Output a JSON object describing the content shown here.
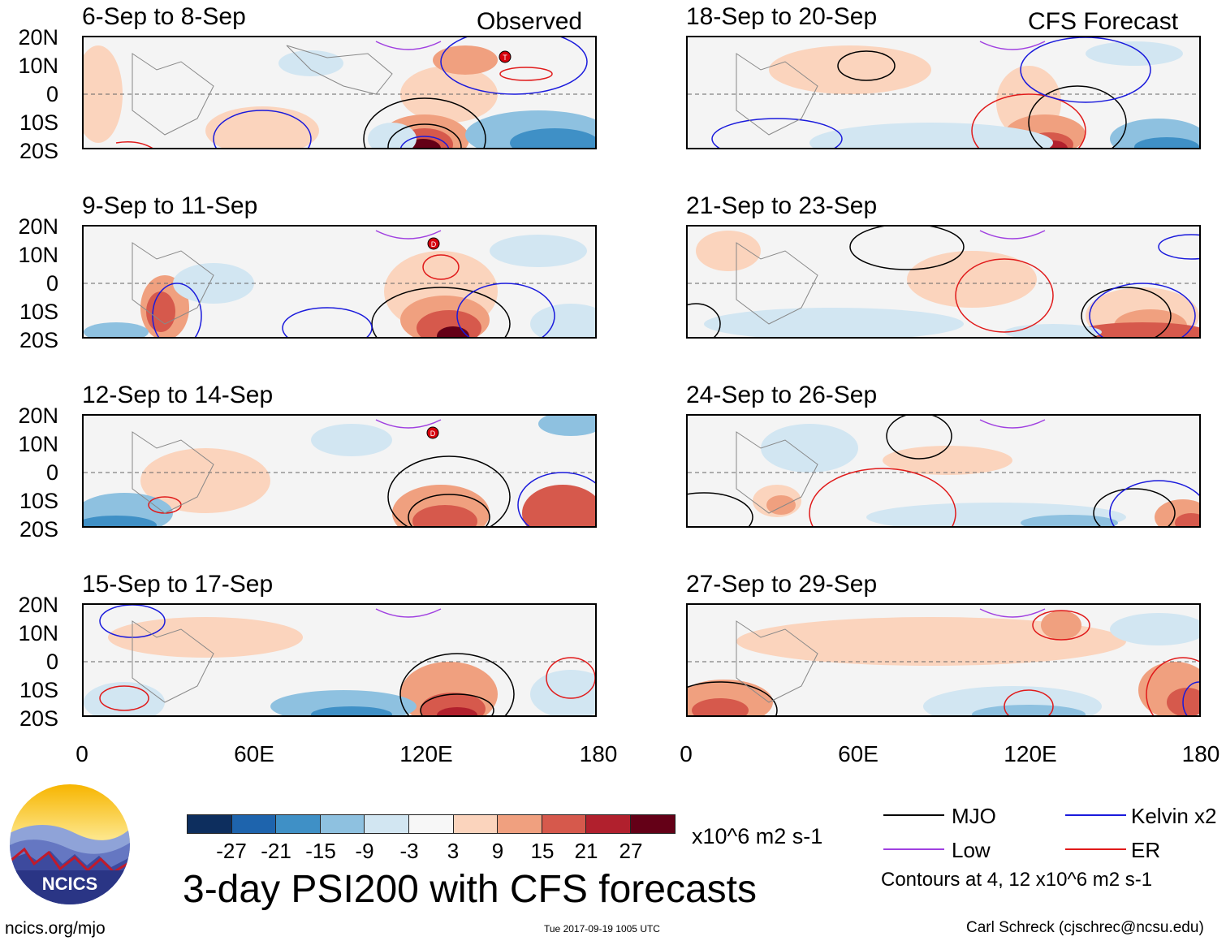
{
  "headers": {
    "observed": "Observed",
    "forecast": "CFS Forecast"
  },
  "panels": [
    {
      "title": "6-Sep to 8-Sep"
    },
    {
      "title": "9-Sep to 11-Sep"
    },
    {
      "title": "12-Sep to 14-Sep"
    },
    {
      "title": "15-Sep to 17-Sep"
    },
    {
      "title": "18-Sep to 20-Sep"
    },
    {
      "title": "21-Sep to 23-Sep"
    },
    {
      "title": "24-Sep to 26-Sep"
    },
    {
      "title": "27-Sep to 29-Sep"
    }
  ],
  "lat_labels": [
    "20N",
    "10N",
    "0",
    "10S",
    "20S"
  ],
  "lon_labels": [
    "0",
    "60E",
    "120E",
    "180"
  ],
  "storm_markers": [
    "T",
    "D",
    "D"
  ],
  "colorbar": {
    "colors": [
      "#0d2e5e",
      "#1e64ad",
      "#3f90c6",
      "#8ec1e0",
      "#d2e6f2",
      "#f7f7f7",
      "#fbd4bd",
      "#f0a07f",
      "#d6594c",
      "#b1202d",
      "#640017"
    ],
    "ticks": [
      "-27",
      "-21",
      "-15",
      "-9",
      "-3",
      "3",
      "9",
      "15",
      "21",
      "27"
    ],
    "units": "x10^6 m2 s-1"
  },
  "title": "3-day PSI200 with CFS forecasts",
  "legend": [
    {
      "label": "MJO",
      "color": "#000000"
    },
    {
      "label": "Kelvin x2",
      "color": "#1a1adc"
    },
    {
      "label": "Low",
      "color": "#a040e0"
    },
    {
      "label": "ER",
      "color": "#e01a1a"
    }
  ],
  "contour_note": "Contours at 4, 12 x10^6 m2 s-1",
  "logo_text": "NCICS",
  "footer": {
    "url": "ncics.org/mjo",
    "timestamp": "Tue 2017-09-19 1005 UTC",
    "author": "Carl Schreck (cjschrec@ncsu.edu)"
  }
}
